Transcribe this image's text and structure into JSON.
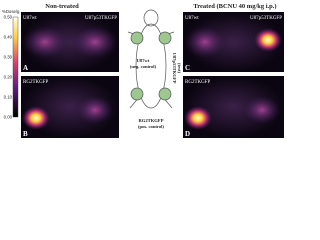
{
  "headers": {
    "left": "Non-treated",
    "right": "Treated (BCNU 40 mg/kg i.p.)"
  },
  "colorbar": {
    "title": "%Dose/g",
    "ticks": [
      "0.50",
      "0.40",
      "0.30",
      "0.20",
      "0.10",
      "0.00"
    ]
  },
  "panels": [
    {
      "letter": "A",
      "left_label": "U87wt",
      "right_label": "U87p53TKGFP"
    },
    {
      "letter": "B",
      "left_label": "RG2TKGFP"
    },
    {
      "letter": "C",
      "left_label": "U87wt",
      "right_label": "U87p53TKGFP"
    },
    {
      "letter": "D",
      "left_label": "RG2TKGFP"
    }
  ],
  "diagram": {
    "neg_label": "U87wt",
    "neg_note": "(neg. control)",
    "test_label": "U87p53TKGFP",
    "test_note": "(test)",
    "pos_label": "RG2TKGFP",
    "pos_note": "(pos. control)"
  }
}
